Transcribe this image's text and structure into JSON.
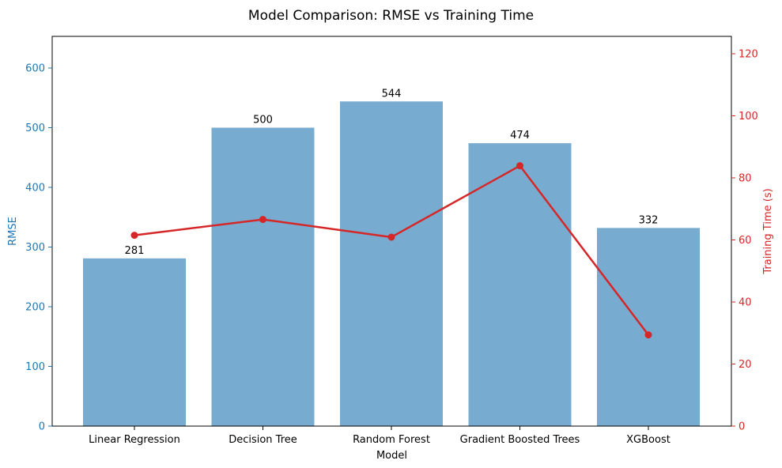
{
  "chart_data": {
    "type": "bar",
    "title": "Model Comparison: RMSE vs Training Time",
    "xlabel": "Model",
    "ylabel": "RMSE",
    "y2label": "Training Time (s)",
    "categories": [
      "Linear Regression",
      "Decision Tree",
      "Random Forest",
      "Gradient Boosted Trees",
      "XGBoost"
    ],
    "series": [
      {
        "type": "bar",
        "axis": "left",
        "values": [
          281,
          500,
          544,
          474,
          332
        ],
        "color": "#77acd0"
      },
      {
        "type": "line",
        "axis": "right",
        "values": [
          61.5,
          66.6,
          60.9,
          83.9,
          29.4
        ],
        "color": "#d62728"
      }
    ],
    "ylim": [
      0,
      653
    ],
    "yticks": [
      0,
      100,
      200,
      300,
      400,
      500,
      600
    ],
    "y2lim": [
      0,
      125.6
    ],
    "y2ticks": [
      0,
      20,
      40,
      60,
      80,
      100,
      120
    ],
    "left_axis_color": "#1f77b4",
    "right_axis_color": "#d62728",
    "grid": false,
    "data_labels": true
  }
}
